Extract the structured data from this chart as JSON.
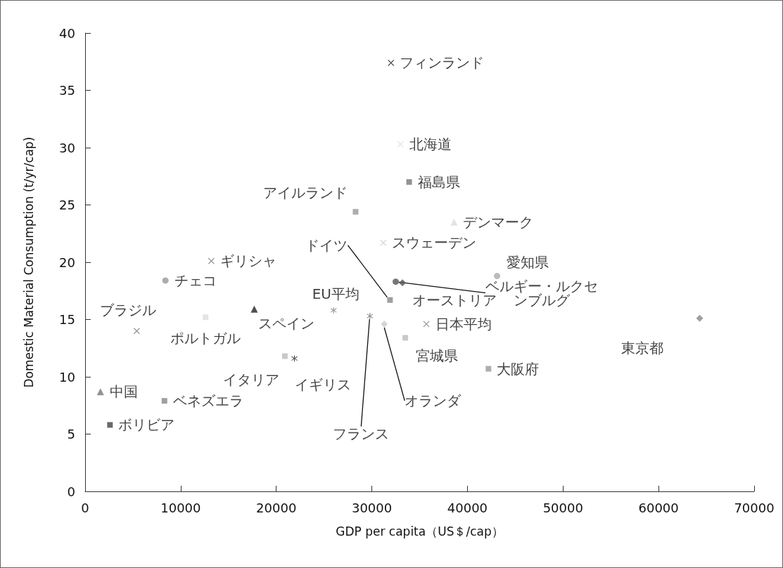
{
  "chart_data": {
    "type": "scatter",
    "xlabel": "GDP per capita（US＄/cap）",
    "ylabel": "Domestic Material Consumption (t/yr/cap)",
    "xlim": [
      0,
      70000
    ],
    "xticks": [
      0,
      10000,
      20000,
      30000,
      40000,
      50000,
      60000,
      70000
    ],
    "ylim": [
      0,
      40
    ],
    "yticks": [
      0,
      5,
      10,
      15,
      20,
      25,
      30,
      35,
      40
    ],
    "grid": false,
    "legend": false,
    "series": [
      {
        "name": "フィンランド",
        "color": "#222222",
        "marker": "cross",
        "x": [
          32000
        ],
        "values": [
          37.4
        ]
      },
      {
        "name": "北海道",
        "color": "#dddddd",
        "marker": "cross",
        "x": [
          33000
        ],
        "values": [
          30.3
        ]
      },
      {
        "name": "福島県",
        "color": "#777777",
        "marker": "square",
        "x": [
          33900
        ],
        "values": [
          27.0
        ]
      },
      {
        "name": "アイルランド",
        "color": "#999999",
        "marker": "square",
        "x": [
          28300
        ],
        "values": [
          24.4
        ]
      },
      {
        "name": "デンマーク",
        "color": "#dddddd",
        "marker": "triangle",
        "x": [
          38600
        ],
        "values": [
          23.5
        ]
      },
      {
        "name": "スウェーデン",
        "color": "#cccccc",
        "marker": "cross",
        "x": [
          31200
        ],
        "values": [
          21.7
        ]
      },
      {
        "name": "ギリシャ",
        "color": "#777777",
        "marker": "cross",
        "x": [
          13200
        ],
        "values": [
          20.1
        ]
      },
      {
        "name": "チェコ",
        "color": "#999999",
        "marker": "circle",
        "x": [
          8400
        ],
        "values": [
          18.4
        ]
      },
      {
        "name": "ドイツ",
        "color": "#888888",
        "marker": "square",
        "x": [
          31900
        ],
        "values": [
          16.7
        ]
      },
      {
        "name": "ベルギー・ルクセンブルグ",
        "color": "#555555",
        "marker": "circle",
        "x": [
          32500
        ],
        "values": [
          18.3
        ]
      },
      {
        "name": "オーストリア",
        "color": "#555555",
        "marker": "diamond",
        "x": [
          33200
        ],
        "values": [
          18.2
        ]
      },
      {
        "name": "愛知県",
        "color": "#aaaaaa",
        "marker": "circle",
        "x": [
          43100
        ],
        "values": [
          18.8
        ]
      },
      {
        "name": "東京都",
        "color": "#888888",
        "marker": "diamond",
        "x": [
          64300
        ],
        "values": [
          15.1
        ]
      },
      {
        "name": "日本平均",
        "color": "#888888",
        "marker": "cross",
        "x": [
          35700
        ],
        "values": [
          14.6
        ]
      },
      {
        "name": "フランス",
        "color": "#666666",
        "marker": "star",
        "x": [
          29800
        ],
        "values": [
          15.3
        ]
      },
      {
        "name": "オランダ",
        "color": "#cccccc",
        "marker": "diamond",
        "x": [
          31300
        ],
        "values": [
          14.6
        ]
      },
      {
        "name": "ブラジル",
        "color": "#777777",
        "marker": "cross",
        "x": [
          5400
        ],
        "values": [
          14.0
        ]
      },
      {
        "name": "ポルトガル",
        "color": "#dddddd",
        "marker": "square",
        "x": [
          12600
        ],
        "values": [
          15.2
        ]
      },
      {
        "name": "スペイン",
        "color": "#222222",
        "marker": "triangle",
        "x": [
          17700
        ],
        "values": [
          15.9
        ]
      },
      {
        "name": "EU平均",
        "color": "#777777",
        "marker": "star",
        "x": [
          26000
        ],
        "values": [
          15.8
        ]
      },
      {
        "name": "イタリア",
        "color": "#bbbbbb",
        "marker": "square",
        "x": [
          20900
        ],
        "values": [
          11.8
        ]
      },
      {
        "name": "イギリス",
        "color": "#222222",
        "marker": "star",
        "x": [
          21900
        ],
        "values": [
          11.6
        ]
      },
      {
        "name": "中国",
        "color": "#777777",
        "marker": "triangle",
        "x": [
          1600
        ],
        "values": [
          8.7
        ]
      },
      {
        "name": "ベネズエラ",
        "color": "#888888",
        "marker": "square",
        "x": [
          8300
        ],
        "values": [
          7.9
        ]
      },
      {
        "name": "ボリビア",
        "color": "#444444",
        "marker": "square",
        "x": [
          2600
        ],
        "values": [
          5.8
        ]
      },
      {
        "name": "宮城県",
        "color": "#bbbbbb",
        "marker": "square",
        "x": [
          33500
        ],
        "values": [
          13.4
        ]
      },
      {
        "name": "大阪府",
        "color": "#999999",
        "marker": "square",
        "x": [
          42200
        ],
        "values": [
          10.7
        ]
      }
    ]
  }
}
